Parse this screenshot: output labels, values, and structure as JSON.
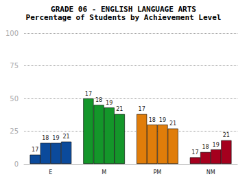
{
  "chart_data": {
    "type": "bar",
    "title": "GRADE 06 - ENGLISH LANGUAGE ARTS",
    "subtitle": "Percentage of Students by Achievement Level",
    "categories": [
      "E",
      "M",
      "PM",
      "NM"
    ],
    "colors": [
      "#0b4a9b",
      "#14962a",
      "#e07d0a",
      "#a5001e"
    ],
    "series": [
      {
        "name": "17",
        "values": [
          7,
          50,
          38,
          5
        ]
      },
      {
        "name": "18",
        "values": [
          16,
          45,
          30,
          9
        ]
      },
      {
        "name": "19",
        "values": [
          16,
          43,
          30,
          11
        ]
      },
      {
        "name": "21",
        "values": [
          17,
          38,
          27,
          18
        ]
      }
    ],
    "ylim": [
      0,
      100
    ],
    "yticks": [
      0,
      25,
      50,
      75,
      100
    ],
    "grid": true
  }
}
